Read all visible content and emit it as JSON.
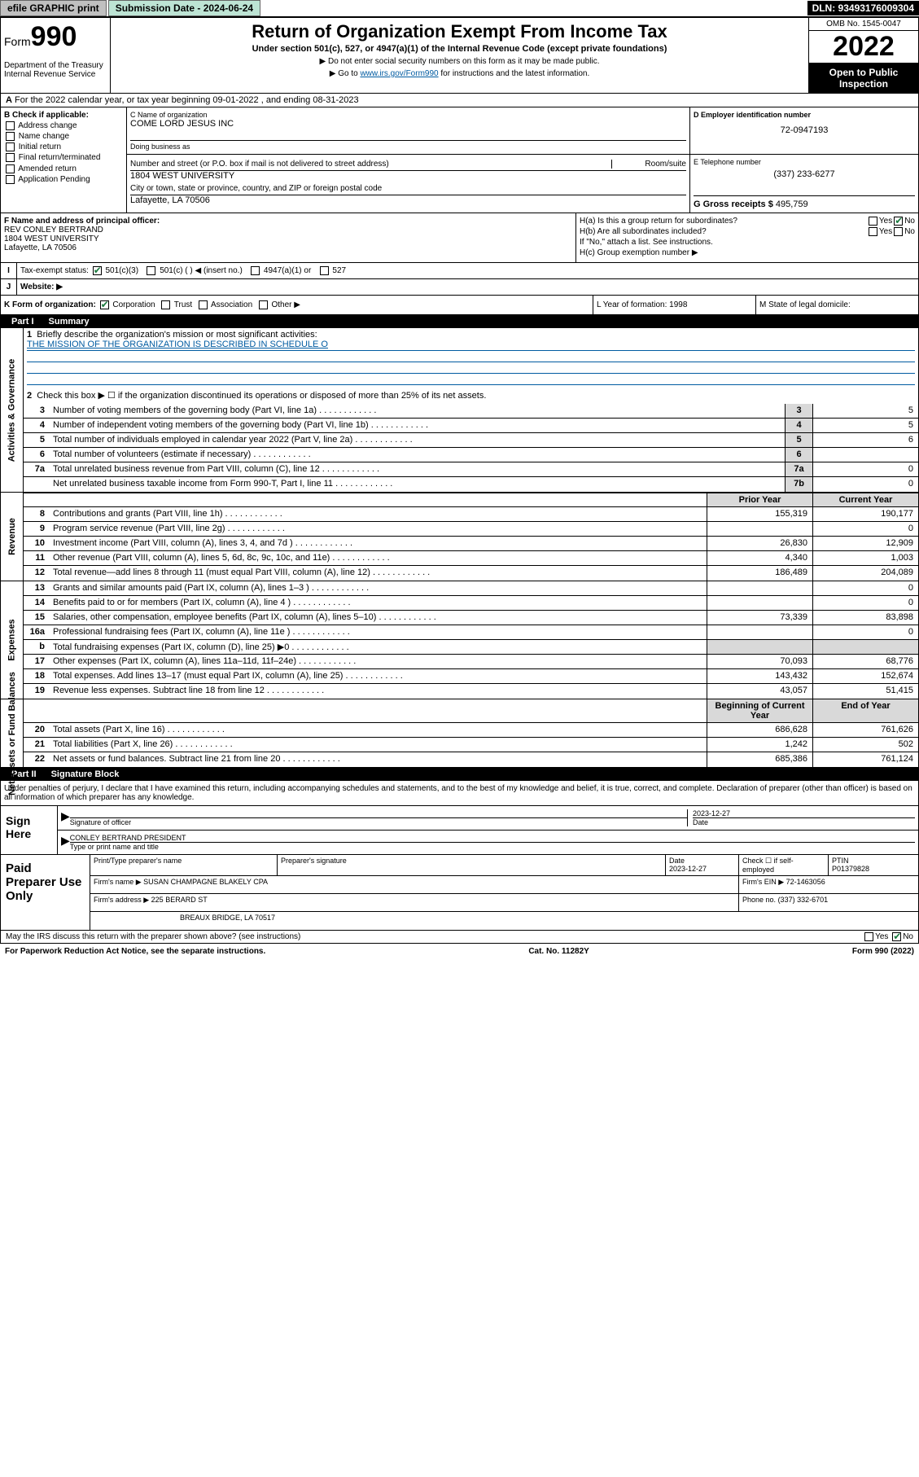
{
  "topbar": {
    "efile": "efile GRAPHIC print",
    "submission_label": "Submission Date - 2024-06-24",
    "dln": "DLN: 93493176009304"
  },
  "header": {
    "form_prefix": "Form",
    "form_number": "990",
    "dept": "Department of the Treasury Internal Revenue Service",
    "title": "Return of Organization Exempt From Income Tax",
    "subtitle": "Under section 501(c), 527, or 4947(a)(1) of the Internal Revenue Code (except private foundations)",
    "note1": "▶ Do not enter social security numbers on this form as it may be made public.",
    "note2_pre": "▶ Go to ",
    "note2_link": "www.irs.gov/Form990",
    "note2_post": " for instructions and the latest information.",
    "omb": "OMB No. 1545-0047",
    "year": "2022",
    "inspect": "Open to Public Inspection"
  },
  "row_a": "For the 2022 calendar year, or tax year beginning 09-01-2022   , and ending 08-31-2023",
  "box_b": {
    "label": "B Check if applicable:",
    "items": [
      "Address change",
      "Name change",
      "Initial return",
      "Final return/terminated",
      "Amended return",
      "Application Pending"
    ]
  },
  "org": {
    "name_label": "C Name of organization",
    "name": "COME LORD JESUS INC",
    "dba_label": "Doing business as",
    "dba": "",
    "addr_label": "Number and street (or P.O. box if mail is not delivered to street address)",
    "room_label": "Room/suite",
    "addr": "1804 WEST UNIVERSITY",
    "city_label": "City or town, state or province, country, and ZIP or foreign postal code",
    "city": "Lafayette, LA  70506",
    "ein_label": "D Employer identification number",
    "ein": "72-0947193",
    "phone_label": "E Telephone number",
    "phone": "(337) 233-6277",
    "gross_label": "G Gross receipts $",
    "gross": "495,759"
  },
  "officer": {
    "label": "F  Name and address of principal officer:",
    "name": "REV CONLEY BERTRAND",
    "addr1": "1804 WEST UNIVERSITY",
    "addr2": "Lafayette, LA  70506"
  },
  "h": {
    "a": "H(a)  Is this a group return for subordinates?",
    "b": "H(b)  Are all subordinates included?",
    "note": "If \"No,\" attach a list. See instructions.",
    "c": "H(c)  Group exemption number ▶"
  },
  "tax_status": {
    "label": "Tax-exempt status:",
    "opts": [
      "501(c)(3)",
      "501(c) (  ) ◀ (insert no.)",
      "4947(a)(1) or",
      "527"
    ]
  },
  "website_label": "Website: ▶",
  "k": {
    "label": "K Form of organization:",
    "opts": [
      "Corporation",
      "Trust",
      "Association",
      "Other ▶"
    ],
    "l": "L Year of formation: 1998",
    "m": "M State of legal domicile:"
  },
  "parts": {
    "p1": "Part I",
    "p1t": "Summary",
    "p2": "Part II",
    "p2t": "Signature Block"
  },
  "summary": {
    "s1": {
      "q": "Briefly describe the organization's mission or most significant activities:",
      "a": "THE MISSION OF THE ORGANIZATION IS DESCRIBED IN SCHEDULE O"
    },
    "s2": "Check this box ▶ ☐  if the organization discontinued its operations or disposed of more than 25% of its net assets.",
    "rows_gov": [
      {
        "n": "3",
        "d": "Number of voting members of the governing body (Part VI, line 1a)",
        "nc": "3",
        "v": "5"
      },
      {
        "n": "4",
        "d": "Number of independent voting members of the governing body (Part VI, line 1b)",
        "nc": "4",
        "v": "5"
      },
      {
        "n": "5",
        "d": "Total number of individuals employed in calendar year 2022 (Part V, line 2a)",
        "nc": "5",
        "v": "6"
      },
      {
        "n": "6",
        "d": "Total number of volunteers (estimate if necessary)",
        "nc": "6",
        "v": ""
      },
      {
        "n": "7a",
        "d": "Total unrelated business revenue from Part VIII, column (C), line 12",
        "nc": "7a",
        "v": "0"
      },
      {
        "n": "",
        "d": "Net unrelated business taxable income from Form 990-T, Part I, line 11",
        "nc": "7b",
        "v": "0"
      }
    ],
    "hdr_prior": "Prior Year",
    "hdr_curr": "Current Year",
    "rows_rev": [
      {
        "n": "8",
        "d": "Contributions and grants (Part VIII, line 1h)",
        "p": "155,319",
        "c": "190,177"
      },
      {
        "n": "9",
        "d": "Program service revenue (Part VIII, line 2g)",
        "p": "",
        "c": "0"
      },
      {
        "n": "10",
        "d": "Investment income (Part VIII, column (A), lines 3, 4, and 7d )",
        "p": "26,830",
        "c": "12,909"
      },
      {
        "n": "11",
        "d": "Other revenue (Part VIII, column (A), lines 5, 6d, 8c, 9c, 10c, and 11e)",
        "p": "4,340",
        "c": "1,003"
      },
      {
        "n": "12",
        "d": "Total revenue—add lines 8 through 11 (must equal Part VIII, column (A), line 12)",
        "p": "186,489",
        "c": "204,089"
      }
    ],
    "rows_exp": [
      {
        "n": "13",
        "d": "Grants and similar amounts paid (Part IX, column (A), lines 1–3 )",
        "p": "",
        "c": "0"
      },
      {
        "n": "14",
        "d": "Benefits paid to or for members (Part IX, column (A), line 4 )",
        "p": "",
        "c": "0"
      },
      {
        "n": "15",
        "d": "Salaries, other compensation, employee benefits (Part IX, column (A), lines 5–10)",
        "p": "73,339",
        "c": "83,898"
      },
      {
        "n": "16a",
        "d": "Professional fundraising fees (Part IX, column (A), line 11e )",
        "p": "",
        "c": "0"
      },
      {
        "n": "b",
        "d": "Total fundraising expenses (Part IX, column (D), line 25) ▶0",
        "p": "gray",
        "c": "gray"
      },
      {
        "n": "17",
        "d": "Other expenses (Part IX, column (A), lines 11a–11d, 11f–24e)",
        "p": "70,093",
        "c": "68,776"
      },
      {
        "n": "18",
        "d": "Total expenses. Add lines 13–17 (must equal Part IX, column (A), line 25)",
        "p": "143,432",
        "c": "152,674"
      },
      {
        "n": "19",
        "d": "Revenue less expenses. Subtract line 18 from line 12",
        "p": "43,057",
        "c": "51,415"
      }
    ],
    "hdr_beg": "Beginning of Current Year",
    "hdr_end": "End of Year",
    "rows_net": [
      {
        "n": "20",
        "d": "Total assets (Part X, line 16)",
        "p": "686,628",
        "c": "761,626"
      },
      {
        "n": "21",
        "d": "Total liabilities (Part X, line 26)",
        "p": "1,242",
        "c": "502"
      },
      {
        "n": "22",
        "d": "Net assets or fund balances. Subtract line 21 from line 20",
        "p": "685,386",
        "c": "761,124"
      }
    ],
    "vlabels": {
      "gov": "Activities & Governance",
      "rev": "Revenue",
      "exp": "Expenses",
      "net": "Net Assets or Fund Balances"
    }
  },
  "sig": {
    "intro": "Under penalties of perjury, I declare that I have examined this return, including accompanying schedules and statements, and to the best of my knowledge and belief, it is true, correct, and complete. Declaration of preparer (other than officer) is based on all information of which preparer has any knowledge.",
    "here": "Sign Here",
    "officer_sig": "Signature of officer",
    "date": "2023-12-27",
    "date_label": "Date",
    "officer_name": "CONLEY BERTRAND  PRESIDENT",
    "officer_name_label": "Type or print name and title"
  },
  "prep": {
    "label": "Paid Preparer Use Only",
    "h_name": "Print/Type preparer's name",
    "h_sig": "Preparer's signature",
    "h_date": "Date",
    "date": "2023-12-27",
    "h_check": "Check ☐ if self-employed",
    "h_ptin": "PTIN",
    "ptin": "P01379828",
    "firm_name_label": "Firm's name     ▶",
    "firm_name": "SUSAN CHAMPAGNE BLAKELY CPA",
    "firm_ein_label": "Firm's EIN ▶",
    "firm_ein": "72-1463056",
    "firm_addr_label": "Firm's address ▶",
    "firm_addr1": "225 BERARD ST",
    "firm_addr2": "BREAUX BRIDGE, LA  70517",
    "phone_label": "Phone no.",
    "phone": "(337) 332-6701"
  },
  "footer": {
    "discuss": "May the IRS discuss this return with the preparer shown above? (see instructions)",
    "paperwork": "For Paperwork Reduction Act Notice, see the separate instructions.",
    "cat": "Cat. No. 11282Y",
    "form": "Form 990 (2022)"
  }
}
